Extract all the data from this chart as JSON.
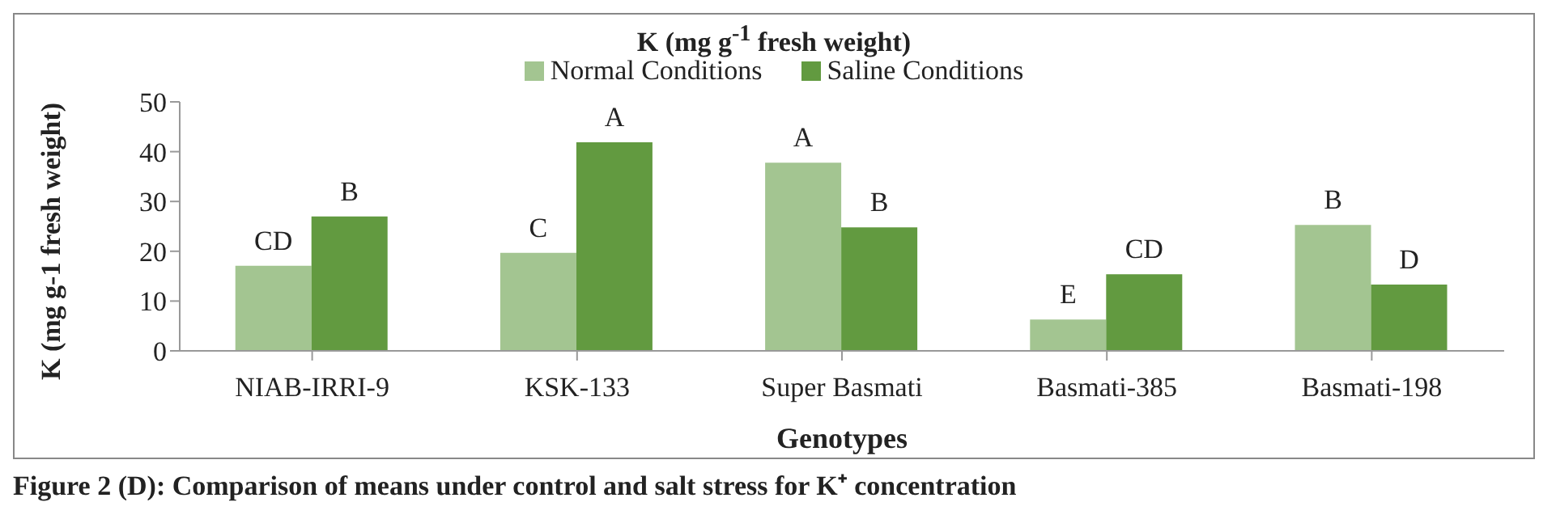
{
  "chart_data": {
    "type": "bar",
    "title": "K (mg g$^{-1}$ fresh weight)",
    "xlabel": "Genotypes",
    "ylabel": "K (mg g-1 fresh weight)",
    "categories": [
      "NIAB-IRRI-9",
      "KSK-133",
      "Super Basmati",
      "Basmati-385",
      "Basmati-198"
    ],
    "series": [
      {
        "name": "Normal Conditions",
        "color": "#a3c591",
        "values": [
          17.1,
          19.7,
          37.8,
          6.3,
          25.3
        ],
        "value_labels": [
          "CD",
          "C",
          "A",
          "E",
          "B"
        ]
      },
      {
        "name": "Saline Conditions",
        "color": "#629a40",
        "values": [
          27.0,
          41.9,
          24.8,
          15.4,
          13.3
        ],
        "value_labels": [
          "B",
          "A",
          "B",
          "CD",
          "D"
        ]
      }
    ],
    "ylim": [
      0,
      50
    ],
    "yticks": [
      0,
      10,
      20,
      30,
      40,
      50
    ],
    "legend": "top",
    "annotations": [
      "Figure 2 (D): Comparison of means under control and salt stress for K⁺ concentration"
    ]
  }
}
